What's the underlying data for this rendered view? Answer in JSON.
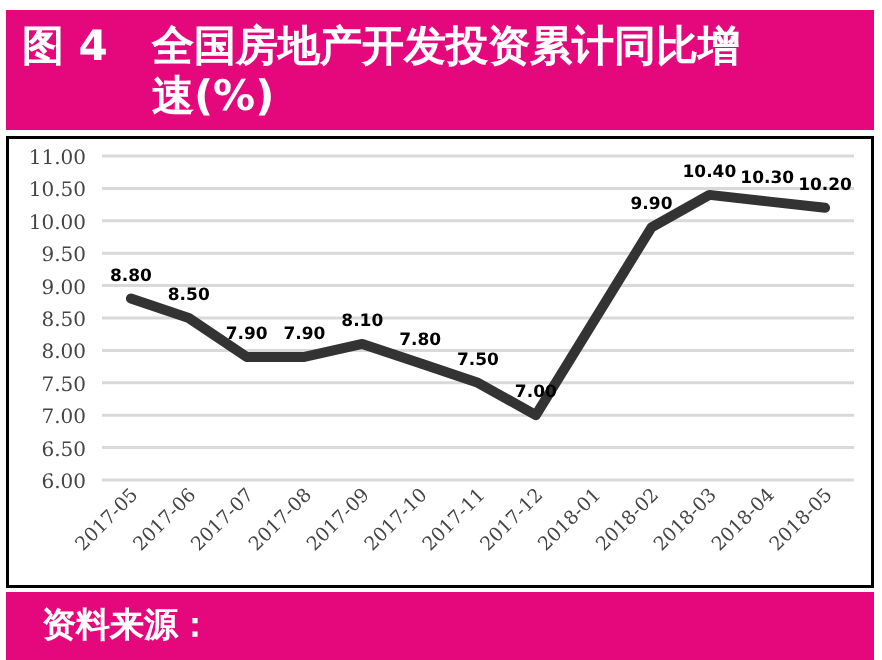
{
  "chart_data": {
    "type": "line",
    "title": "图 4 全国房地产开发投资累计同比增速(%)",
    "categories": [
      "2017-05",
      "2017-06",
      "2017-07",
      "2017-08",
      "2017-09",
      "2017-10",
      "2017-11",
      "2017-12",
      "2018-01",
      "2018-02",
      "2018-03",
      "2018-04",
      "2018-05"
    ],
    "series": [
      {
        "color": "#333333",
        "values": [
          8.8,
          8.5,
          7.9,
          7.9,
          8.1,
          7.8,
          7.5,
          7.0,
          null,
          9.9,
          10.4,
          10.3,
          10.2
        ],
        "value_labels": [
          "8.80",
          "8.50",
          "7.90",
          "7.90",
          "8.10",
          "7.80",
          "7.50",
          "7.00",
          null,
          "9.90",
          "10.40",
          "10.30",
          "10.20"
        ]
      }
    ],
    "ylim": [
      6,
      11
    ],
    "yticks": [
      {
        "value": 6,
        "label": "6.00"
      },
      {
        "value": 6.5,
        "label": "6.50"
      },
      {
        "value": 7,
        "label": "7.00"
      },
      {
        "value": 7.5,
        "label": "7.50"
      },
      {
        "value": 8,
        "label": "8.00"
      },
      {
        "value": 8.5,
        "label": "8.50"
      },
      {
        "value": 9,
        "label": "9.00"
      },
      {
        "value": 9.5,
        "label": "9.50"
      },
      {
        "value": 10,
        "label": "10.00"
      },
      {
        "value": 10.5,
        "label": "10.50"
      },
      {
        "value": 11,
        "label": "11.00"
      }
    ],
    "grid": "y",
    "marker": "none",
    "line_style": "solid",
    "annotations": [
      "资料来源："
    ]
  }
}
